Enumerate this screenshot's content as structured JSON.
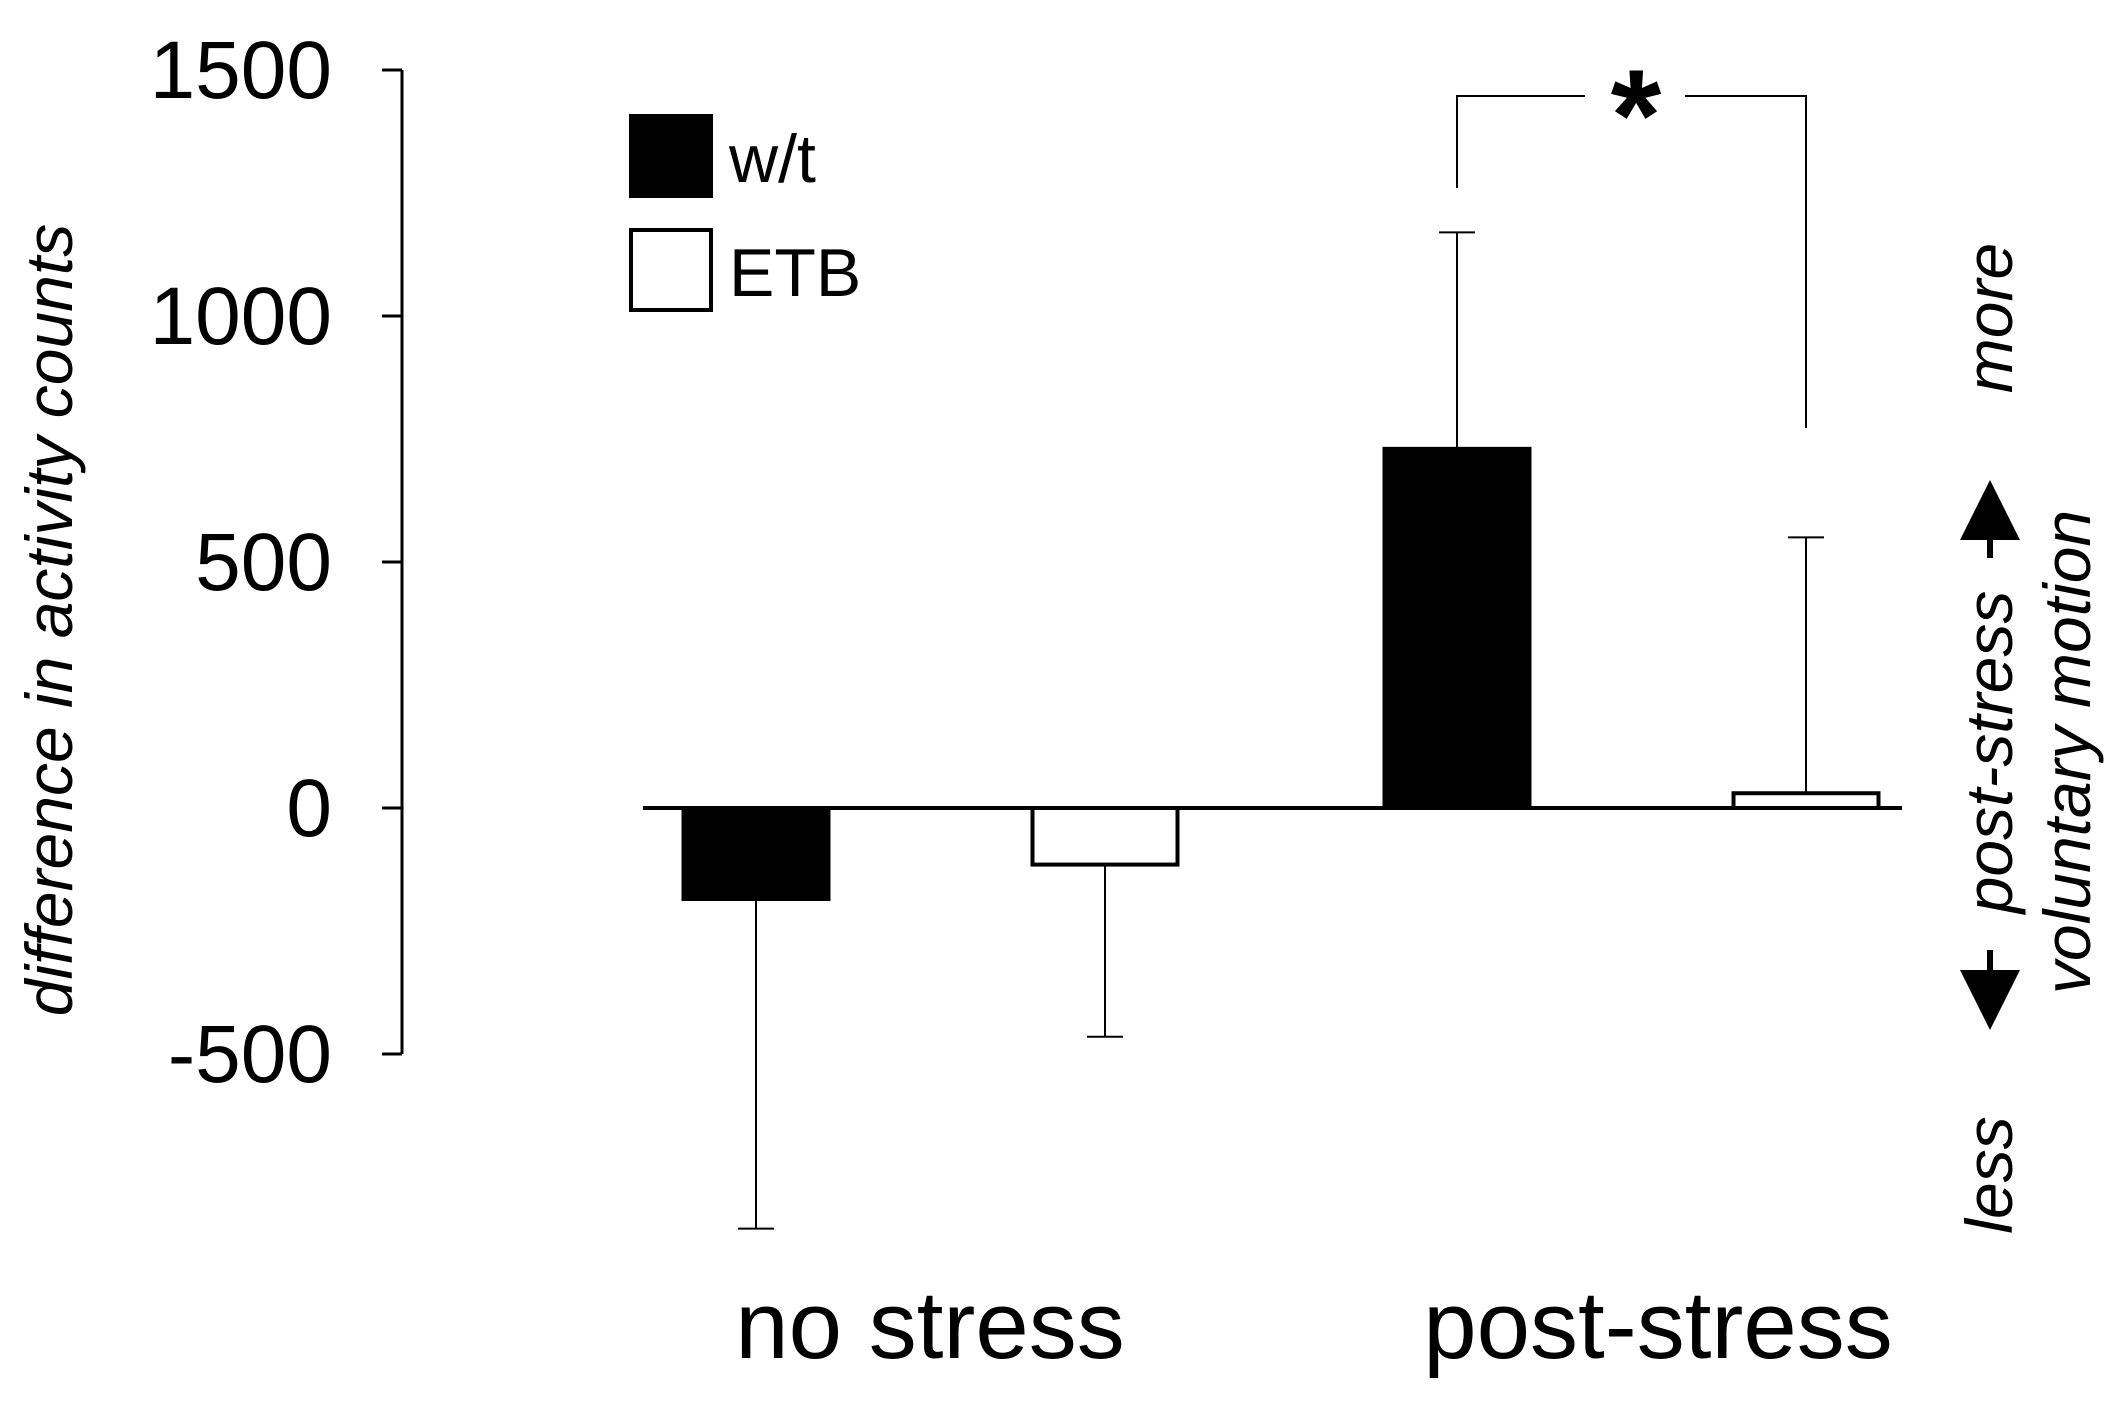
{
  "chart_data": {
    "type": "bar",
    "title": "",
    "xlabel": "",
    "ylabel": "difference in activity counts",
    "ylim": [
      -800,
      1500
    ],
    "yticks": [
      "1500",
      "1000",
      "500",
      "0",
      "-500"
    ],
    "ytick_values": [
      1500,
      1000,
      500,
      0,
      -500
    ],
    "categories": [
      "no stress",
      "post-stress"
    ],
    "series": [
      {
        "name": "w/t",
        "color": "#000000",
        "values": [
          -185,
          730
        ],
        "error": [
          670,
          440
        ]
      },
      {
        "name": "ETB",
        "color": "#ffffff",
        "values": [
          -115,
          30
        ],
        "error": [
          350,
          520
        ]
      }
    ],
    "grid": false,
    "legend": "top-left",
    "annotations": {
      "significance": "*",
      "side_top": "more",
      "side_mid_1": "post-stress",
      "side_mid_2": "voluntary motion",
      "side_bottom": "less"
    }
  }
}
